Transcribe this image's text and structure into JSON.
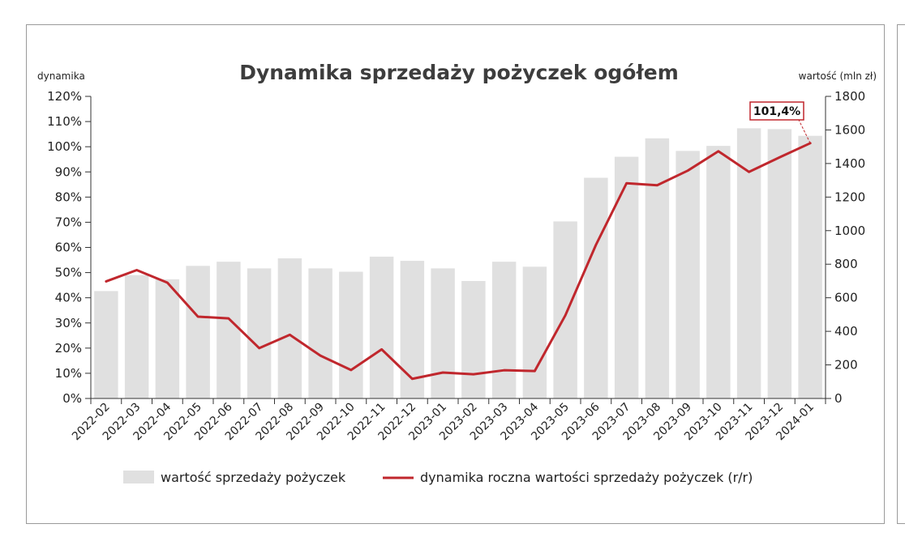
{
  "chart_data": {
    "type": "bar",
    "title": "Dynamika sprzedaży pożyczek ogółem",
    "ylabel_left": "dynamika",
    "ylabel_right": "wartość (mln zł)",
    "categories": [
      "2022-02",
      "2022-03",
      "2022-04",
      "2022-05",
      "2022-06",
      "2022-07",
      "2022-08",
      "2022-09",
      "2022-10",
      "2022-11",
      "2022-12",
      "2023-01",
      "2023-02",
      "2023-03",
      "2023-04",
      "2023-05",
      "2023-06",
      "2023-07",
      "2023-08",
      "2023-09",
      "2023-10",
      "2023-11",
      "2023-12",
      "2024-01"
    ],
    "ylim_left": [
      0,
      120
    ],
    "yticks_left": [
      "0%",
      "10%",
      "20%",
      "30%",
      "40%",
      "50%",
      "60%",
      "70%",
      "80%",
      "90%",
      "100%",
      "110%",
      "120%"
    ],
    "ylim_right": [
      0,
      1800
    ],
    "yticks_right": [
      "0",
      "200",
      "400",
      "600",
      "800",
      "1000",
      "1200",
      "1400",
      "1600",
      "1800"
    ],
    "series": [
      {
        "name": "wartość sprzedaży pożyczek",
        "type": "bar",
        "axis": "right",
        "color": "#e0e0e0",
        "values": [
          640,
          735,
          710,
          790,
          815,
          775,
          835,
          775,
          755,
          845,
          820,
          775,
          700,
          815,
          785,
          1055,
          1315,
          1440,
          1550,
          1475,
          1505,
          1610,
          1605,
          1565
        ]
      },
      {
        "name": "dynamika roczna wartości sprzedaży pożyczek (r/r)",
        "type": "line",
        "axis": "left",
        "color": "#c0272d",
        "values": [
          46.5,
          51,
          46,
          32.5,
          31.8,
          20,
          25.3,
          17,
          11.3,
          19.5,
          7.8,
          10.3,
          9.6,
          11.2,
          10.9,
          33,
          61,
          85.5,
          84.7,
          90.5,
          98.2,
          90,
          95.8,
          101.4
        ]
      }
    ],
    "annotation": {
      "text": "101,4%",
      "series": 1,
      "index": 23
    },
    "legend": "bottom",
    "grid": false
  }
}
